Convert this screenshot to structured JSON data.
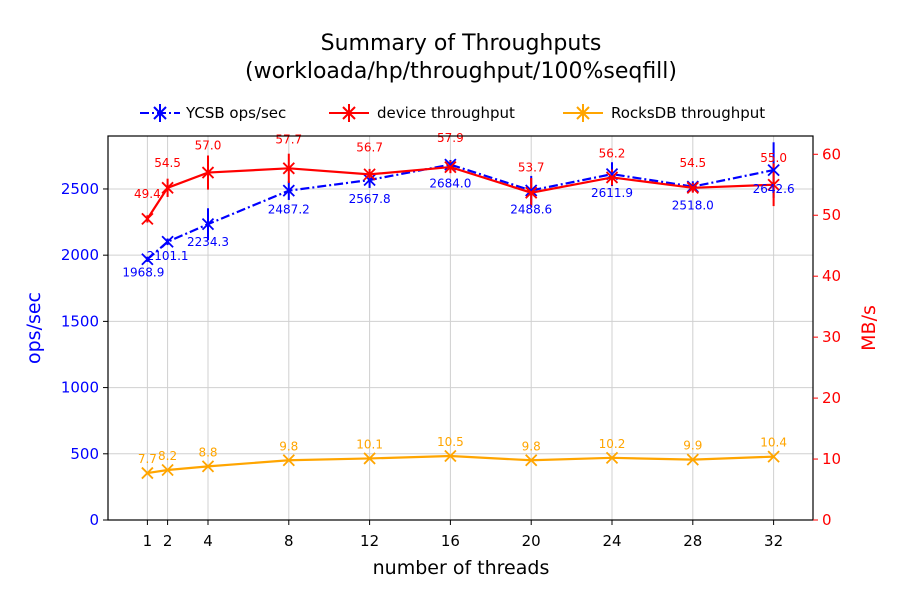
{
  "chart_data": {
    "type": "line",
    "title_line1": "Summary of Throughputs",
    "title_line2": "(workloada/hp/throughput/100%seqfill)",
    "xlabel": "number of threads",
    "ylabel_left": "ops/sec",
    "ylabel_right": "MB/s",
    "x": [
      1,
      2,
      4,
      8,
      12,
      16,
      20,
      24,
      28,
      32
    ],
    "xlim": [
      -0.95,
      33.95
    ],
    "ylim_left": [
      0,
      2900
    ],
    "ylim_right": [
      0,
      63
    ],
    "yticks_left": [
      0,
      500,
      1000,
      1500,
      2000,
      2500
    ],
    "yticks_right": [
      0,
      10,
      20,
      30,
      40,
      50,
      60
    ],
    "grid": true,
    "legend_position": "top-center",
    "series": [
      {
        "name": "YCSB ops/sec",
        "axis": "left",
        "color": "#0000ff",
        "linestyle": "dashdot",
        "values": [
          1968.9,
          2101.1,
          2234.3,
          2487.2,
          2567.8,
          2684.0,
          2488.6,
          2611.9,
          2518.0,
          2642.6
        ],
        "labels": [
          "1968.9",
          "2101.1",
          "2234.3",
          "2487.2",
          "2567.8",
          "2684.0",
          "2488.6",
          "2611.9",
          "2518.0",
          "2642.6"
        ],
        "err": [
          20,
          25,
          120,
          70,
          60,
          35,
          110,
          90,
          40,
          210
        ]
      },
      {
        "name": "device throughput",
        "axis": "right",
        "color": "#ff0000",
        "linestyle": "solid",
        "values": [
          49.4,
          54.5,
          57.0,
          57.7,
          56.7,
          57.9,
          53.7,
          56.2,
          54.5,
          55.0
        ],
        "labels": [
          "49.4",
          "54.5",
          "57.0",
          "57.7",
          "56.7",
          "57.9",
          "53.7",
          "56.2",
          "54.5",
          "55.0"
        ],
        "err": [
          0.6,
          1.5,
          2.8,
          2.4,
          0.9,
          1.0,
          2.4,
          1.3,
          0.8,
          3.5
        ]
      },
      {
        "name": "RocksDB throughput",
        "axis": "right",
        "color": "#ffa500",
        "linestyle": "solid",
        "values": [
          7.7,
          8.2,
          8.8,
          9.8,
          10.1,
          10.5,
          9.8,
          10.2,
          9.9,
          10.4
        ],
        "labels": [
          "7.7",
          "8.2",
          "8.8",
          "9.8",
          "10.1",
          "10.5",
          "9.8",
          "10.2",
          "9.9",
          "10.4"
        ],
        "err": [
          0,
          0,
          0,
          0,
          0,
          0,
          0,
          0,
          0,
          0
        ]
      }
    ]
  }
}
